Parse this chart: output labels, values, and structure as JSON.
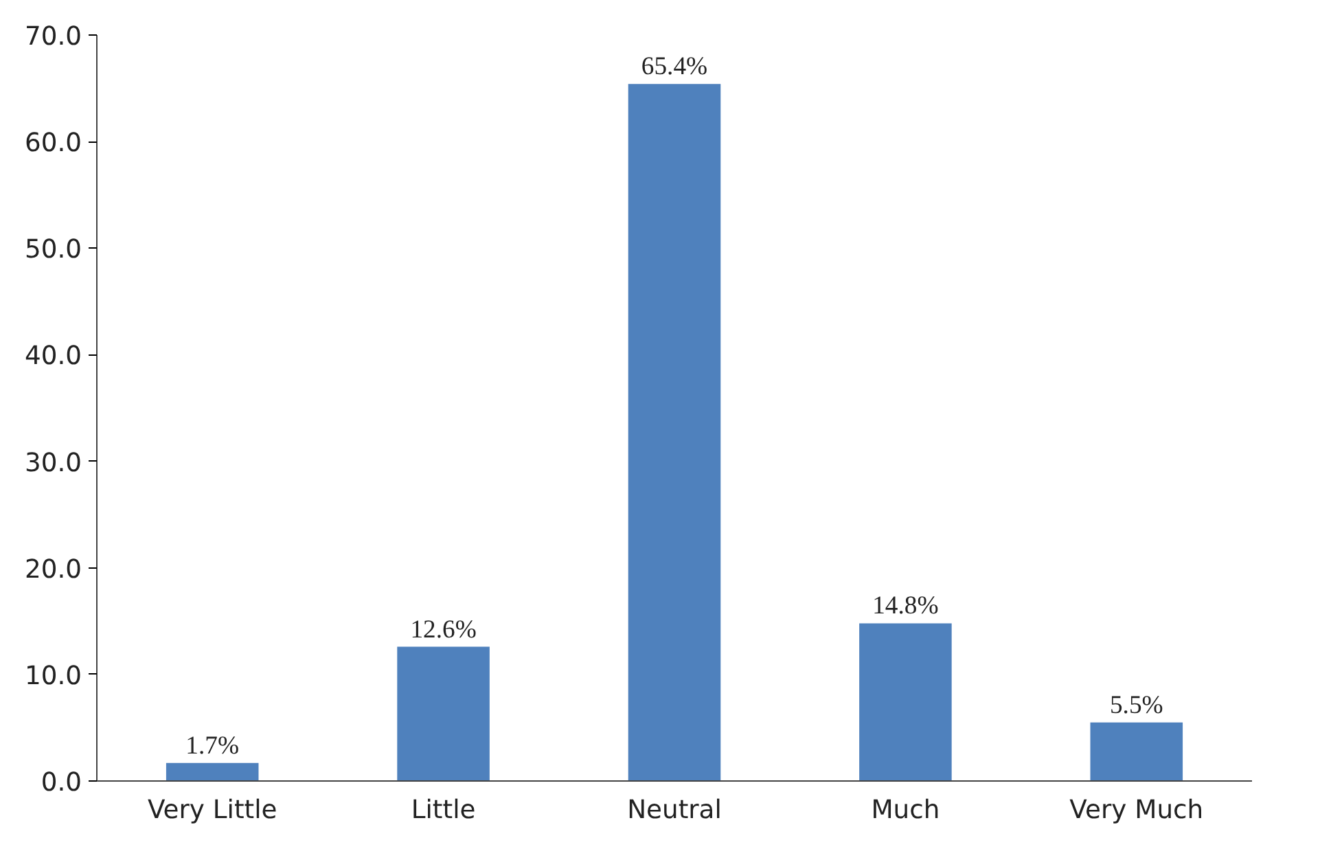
{
  "chart_data": {
    "type": "bar",
    "categories": [
      "Very Little",
      "Little",
      "Neutral",
      "Much",
      "Very Much"
    ],
    "values": [
      1.7,
      12.6,
      65.4,
      14.8,
      5.5
    ],
    "value_labels": [
      "1.7%",
      "12.6%",
      "65.4%",
      "14.8%",
      "5.5%"
    ],
    "color": "#4f81bd",
    "ylim": [
      0,
      70
    ],
    "yticks": [
      {
        "value": 0,
        "label": "0.0"
      },
      {
        "value": 10,
        "label": "10.0"
      },
      {
        "value": 20,
        "label": "20.0"
      },
      {
        "value": 30,
        "label": "30.0"
      },
      {
        "value": 40,
        "label": "40.0"
      },
      {
        "value": 50,
        "label": "50.0"
      },
      {
        "value": 60,
        "label": "60.0"
      },
      {
        "value": 70,
        "label": "70.0"
      }
    ],
    "grid": false
  }
}
